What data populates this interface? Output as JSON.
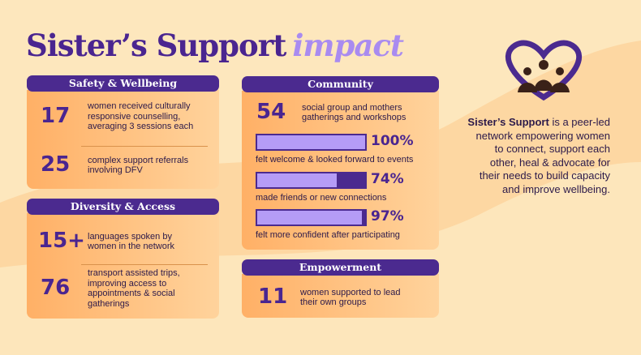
{
  "title": {
    "main": "Sister’s Support",
    "accent": "impact"
  },
  "safety": {
    "heading": "Safety & Wellbeing",
    "stats": [
      {
        "number": "17",
        "lines": [
          "women received culturally",
          "responsive counselling,",
          "averaging 3 sessions each"
        ]
      },
      {
        "number": "25",
        "lines": [
          "complex support referrals",
          "involving DFV"
        ]
      }
    ]
  },
  "diversity": {
    "heading": "Diversity & Access",
    "stats": [
      {
        "number": "15+",
        "lines": [
          "languages spoken by",
          "women in the network"
        ]
      },
      {
        "number": "76",
        "lines": [
          "transport assisted trips,",
          "improving access to",
          "appointments & social",
          "gatherings"
        ]
      }
    ]
  },
  "community": {
    "heading": "Community",
    "stat": {
      "number": "54",
      "lines": [
        "social group and mothers",
        "gatherings and workshops"
      ]
    },
    "xlim": [
      0,
      100
    ],
    "bars": [
      {
        "value": 100,
        "label": "100%",
        "caption": "felt welcome & looked forward to events"
      },
      {
        "value": 74,
        "label": "74%",
        "caption": "made friends or new connections"
      },
      {
        "value": 97,
        "label": "97%",
        "caption": "felt more confident after participating"
      }
    ]
  },
  "empowerment": {
    "heading": "Empowerment",
    "stat": {
      "number": "11",
      "lines": [
        "women supported to lead",
        "their own groups"
      ]
    }
  },
  "about": {
    "name": "Sister’s Support",
    "lines": [
      "is a peer-led",
      "network empowering women",
      "to connect, support each",
      "other, heal & advocate for",
      "their needs to build capacity",
      "and improve wellbeing."
    ]
  }
}
